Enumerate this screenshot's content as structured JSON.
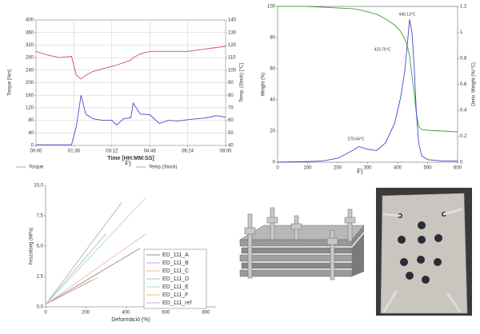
{
  "chart_data": [
    {
      "type": "line",
      "x_label": "Time [HH:MM:SS]",
      "y_label": "Torque [Nm]",
      "y2_label": "Temp. (Stock) [°C]",
      "caption": "F)",
      "x": [
        0,
        0.5,
        1,
        1.5,
        1.7,
        1.9,
        2.1,
        2.4,
        2.8,
        3.2,
        3.4,
        3.7,
        4.0,
        4.1,
        4.4,
        4.8,
        5.2,
        5.6,
        6.0,
        6.4,
        6.8,
        7.2,
        7.6,
        8.0
      ],
      "xlim": [
        0,
        8
      ],
      "xticks": [
        {
          "value": 0,
          "label": "00:00"
        },
        {
          "value": 1.6,
          "label": "01:36"
        },
        {
          "value": 3.2,
          "label": "03:12"
        },
        {
          "value": 4.8,
          "label": "04:48"
        },
        {
          "value": 6.4,
          "label": "06:24"
        },
        {
          "value": 8,
          "label": "08:00"
        }
      ],
      "ylim": [
        0,
        400
      ],
      "yticks": [
        0,
        40,
        80,
        120,
        160,
        200,
        240,
        280,
        320,
        360,
        400
      ],
      "y2lim": [
        40,
        140
      ],
      "y2ticks": [
        40,
        50,
        60,
        70,
        80,
        90,
        100,
        110,
        120,
        130,
        140
      ],
      "grid": true,
      "legend": "bottom",
      "series": [
        {
          "name": "Torque",
          "color": "#4a4ad0",
          "values": [
            2,
            2,
            2,
            2,
            60,
            160,
            100,
            85,
            80,
            80,
            65,
            85,
            88,
            135,
            100,
            98,
            70,
            80,
            78,
            82,
            85,
            88,
            95,
            90
          ]
        },
        {
          "name": "Temp.(Stock)",
          "color": "#d05050",
          "axis": "y2",
          "values": [
            115,
            112,
            110,
            111,
            96,
            93,
            96,
            99,
            101,
            103,
            104,
            106,
            108,
            110,
            113,
            115,
            115,
            115,
            115,
            115,
            116,
            117,
            118,
            119
          ]
        }
      ]
    },
    {
      "type": "line",
      "y_label": "Weight (%)",
      "y2_label": "Deriv. Weight (%/°C)",
      "caption": "F)",
      "x": [
        0,
        100,
        150,
        200,
        250,
        270,
        300,
        330,
        360,
        390,
        410,
        424,
        432,
        440,
        448,
        455,
        462,
        470,
        480,
        500,
        550,
        600
      ],
      "xlim": [
        0,
        600
      ],
      "xticks": [
        0,
        100,
        200,
        300,
        400,
        500,
        600
      ],
      "ylim": [
        0,
        100
      ],
      "yticks": [
        0,
        20,
        40,
        60,
        80,
        100
      ],
      "y2lim": [
        0,
        1.2
      ],
      "y2ticks": [
        0,
        0.2,
        0.4,
        0.6,
        0.8,
        1,
        1.2
      ],
      "grid": false,
      "annotations": [
        "270.64°C",
        "423.76°C",
        "440.13°C"
      ],
      "series": [
        {
          "name": "Weight",
          "color": "#3aa03a",
          "values": [
            100,
            100,
            99.5,
            99,
            98.5,
            98,
            96.5,
            95,
            92,
            88,
            84,
            79,
            75,
            68,
            55,
            45,
            32,
            23,
            21,
            20.5,
            20,
            19.5
          ]
        },
        {
          "name": "Deriv. Weight",
          "color": "#4444cc",
          "axis": "y2",
          "values": [
            0,
            0.005,
            0.01,
            0.03,
            0.09,
            0.12,
            0.1,
            0.09,
            0.15,
            0.3,
            0.5,
            0.7,
            0.9,
            1.1,
            1.0,
            0.75,
            0.4,
            0.15,
            0.05,
            0.02,
            0.01,
            0.01
          ]
        }
      ]
    },
    {
      "type": "line",
      "x_label": "Deformáció (%)",
      "y_label": "Feszültség (MPa)",
      "xlim": [
        0,
        850
      ],
      "xticks": [
        0,
        200,
        400,
        600,
        800
      ],
      "ylim": [
        0,
        10
      ],
      "yticks": [
        {
          "value": 0,
          "label": "0,0"
        },
        {
          "value": 2.5,
          "label": "2,5"
        },
        {
          "value": 5,
          "label": "5,0"
        },
        {
          "value": 7.5,
          "label": "7,5"
        },
        {
          "value": 10,
          "label": "10,0"
        }
      ],
      "grid": false,
      "legend": "right",
      "series": [
        {
          "name": "ED_111_A",
          "color": "#8c8c8c",
          "x": [
            0,
            470
          ],
          "values": [
            0.2,
            4.8
          ]
        },
        {
          "name": "ED_111_B",
          "color": "#b8a8d8",
          "x": [
            0,
            380
          ],
          "values": [
            0.2,
            8.6
          ]
        },
        {
          "name": "ED_111_C",
          "color": "#f0b8a8",
          "x": [
            0,
            500
          ],
          "values": [
            0.2,
            6.0
          ]
        },
        {
          "name": "ED_111_D",
          "color": "#a8c898",
          "x": [
            0,
            300
          ],
          "values": [
            0.2,
            6.0
          ]
        },
        {
          "name": "ED_111_E",
          "color": "#a8e0c0",
          "x": [
            0,
            500
          ],
          "values": [
            0.2,
            9.0
          ]
        },
        {
          "name": "ED_111_F",
          "color": "#d8c870",
          "x": [
            0,
            260
          ],
          "values": [
            0.2,
            2.4
          ]
        },
        {
          "name": "ED_111_ref",
          "color": "#c8a8d8",
          "x": [
            0,
            230
          ],
          "values": [
            0.2,
            2.2
          ]
        }
      ]
    }
  ]
}
